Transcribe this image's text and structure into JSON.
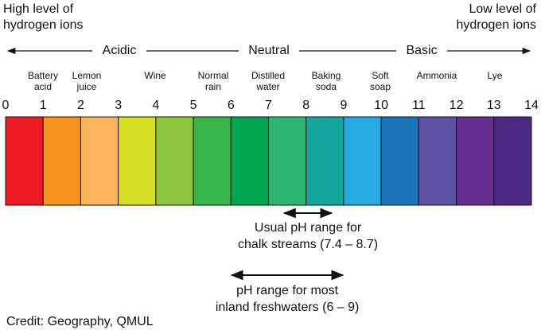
{
  "header": {
    "left": [
      "High level of",
      "hydrogen ions"
    ],
    "right": [
      "Low level of",
      "hydrogen ions"
    ]
  },
  "direction_labels": [
    "Acidic",
    "Neutral",
    "Basic"
  ],
  "substances": [
    [
      "Battery",
      "acid"
    ],
    [
      "Lemon",
      "juice"
    ],
    [
      "Wine"
    ],
    [
      "Normal",
      "rain"
    ],
    [
      "Distilled",
      "water"
    ],
    [
      "Baking",
      "soda"
    ],
    [
      "Soft",
      "soap"
    ],
    [
      "Ammonia"
    ],
    [
      "Lye"
    ]
  ],
  "scale": {
    "ticks": [
      0,
      1,
      2,
      3,
      4,
      5,
      6,
      7,
      8,
      9,
      10,
      11,
      12,
      13,
      14
    ],
    "colors": [
      "#ed1c24",
      "#f7941d",
      "#fbb45c",
      "#d7df23",
      "#8dc63f",
      "#39b54a",
      "#00a651",
      "#2bb673",
      "#14a79d",
      "#27aae1",
      "#1b75bc",
      "#5b52a3",
      "#662d91",
      "#4b2a84"
    ]
  },
  "ranges": [
    {
      "lines": [
        "Usual pH range for",
        "chalk streams (7.4 – 8.7)"
      ],
      "from": 7.4,
      "to": 8.7
    },
    {
      "lines": [
        "pH range for most",
        "inland freshwaters (6 – 9)"
      ],
      "from": 6,
      "to": 9
    }
  ],
  "credit": "Credit: Geography, QMUL"
}
